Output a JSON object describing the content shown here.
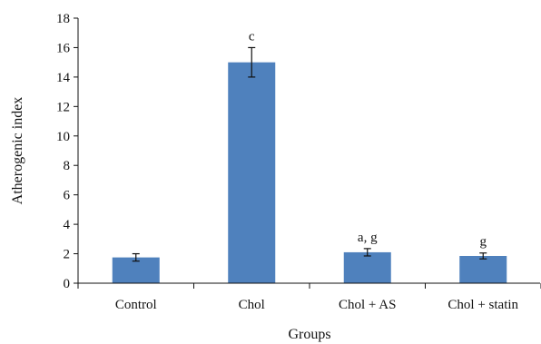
{
  "chart_data": {
    "type": "bar",
    "title": "",
    "xlabel": "Groups",
    "ylabel": "Atherogenic index",
    "categories": [
      "Control",
      "Chol",
      "Chol + AS",
      "Chol + statin"
    ],
    "values": [
      1.75,
      15.0,
      2.1,
      1.85
    ],
    "error": [
      0.25,
      1.0,
      0.25,
      0.2
    ],
    "annotations": [
      "",
      "c",
      "a, g",
      "g"
    ],
    "ylim": [
      0,
      18
    ],
    "yticks": [
      0,
      2,
      4,
      6,
      8,
      10,
      12,
      14,
      16,
      18
    ],
    "grid": false,
    "legend": "none",
    "bar_color": "#4f81bd"
  }
}
